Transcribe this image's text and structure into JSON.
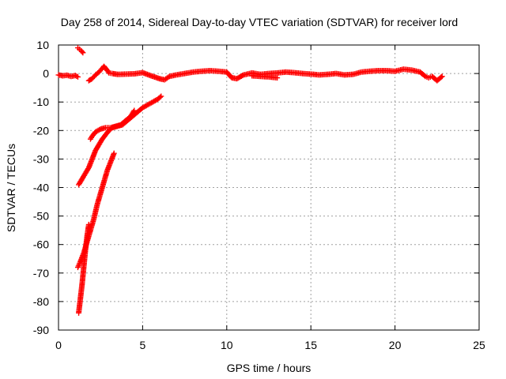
{
  "chart_data": {
    "type": "scatter",
    "title": "Day 258 of 2014, Sidereal Day-to-day VTEC variation (SDTVAR) for receiver lord",
    "xlabel": "GPS time / hours",
    "ylabel": "SDTVAR / TECUs",
    "xlim": [
      0,
      25
    ],
    "ylim": [
      -90,
      10
    ],
    "xticks": [
      "0",
      "5",
      "10",
      "15",
      "20",
      "25"
    ],
    "yticks": [
      "10",
      "0",
      "-10",
      "-20",
      "-30",
      "-40",
      "-50",
      "-60",
      "-70",
      "-80",
      "-90"
    ],
    "grid": true,
    "marker": "plus",
    "color": "#ff0000",
    "series": [
      {
        "x": [
          0,
          0.25,
          0.5,
          0.75,
          1.0,
          1.15
        ],
        "y": [
          -0.5,
          -0.8,
          -0.6,
          -1.0,
          -0.7,
          -1.2
        ]
      },
      {
        "x": [
          1.15,
          1.25,
          1.35,
          1.45
        ],
        "y": [
          9.0,
          8.5,
          8.0,
          7.3
        ]
      },
      {
        "x": [
          1.8,
          2.0,
          2.2,
          2.4,
          2.6,
          2.7,
          2.85,
          3.0,
          3.2,
          3.5,
          4.0,
          4.5,
          5.0,
          5.5,
          6.0,
          6.3,
          6.6,
          7.0,
          7.5,
          8.0,
          8.5,
          9.0,
          9.5,
          10.0,
          10.3,
          10.6,
          11.0,
          11.5,
          12.0,
          12.5,
          13.0,
          13.5,
          14.0,
          14.5,
          15.0,
          15.5,
          16.0,
          16.5,
          17.0,
          17.5,
          18.0,
          18.5,
          19.0,
          19.5,
          20.0,
          20.5,
          21.0,
          21.5,
          21.8,
          22.0,
          22.2,
          22.5,
          22.8
        ],
        "y": [
          -2.5,
          -1.8,
          -0.5,
          0.5,
          1.8,
          2.5,
          1.5,
          0.2,
          0.0,
          -0.3,
          -0.2,
          -0.1,
          0.3,
          -0.8,
          -1.8,
          -2.2,
          -1.0,
          -0.5,
          0.0,
          0.5,
          0.8,
          1.0,
          0.8,
          0.5,
          -1.5,
          -1.8,
          -0.5,
          0.2,
          -0.3,
          0.0,
          0.2,
          0.5,
          0.3,
          0.0,
          -0.2,
          -0.5,
          -0.3,
          0.0,
          -0.5,
          -0.3,
          0.5,
          0.8,
          1.0,
          1.0,
          0.8,
          1.5,
          1.2,
          0.5,
          -1.0,
          -1.5,
          -1.0,
          -2.5,
          -1.0
        ]
      },
      {
        "x": [
          11.5,
          12.0,
          12.5,
          13.0
        ],
        "y": [
          -0.8,
          -1.0,
          -1.2,
          -1.5
        ]
      },
      {
        "x": [
          1.2,
          1.4,
          1.6,
          1.8,
          2.0,
          2.2,
          2.4,
          2.6,
          2.8,
          3.0,
          3.2,
          3.5,
          3.8,
          4.1,
          4.4,
          4.7,
          5.0,
          5.3,
          5.6,
          5.9,
          6.1
        ],
        "y": [
          -39,
          -37,
          -35,
          -33,
          -30,
          -27,
          -25,
          -23,
          -21.5,
          -20,
          -19,
          -18.5,
          -18,
          -16.5,
          -15,
          -13.5,
          -12,
          -11,
          -10,
          -9,
          -8
        ]
      },
      {
        "x": [
          1.9,
          2.0,
          2.2,
          2.5,
          2.8,
          3.1,
          3.4,
          3.7,
          4.0,
          4.3,
          4.5
        ],
        "y": [
          -23,
          -22,
          -20.5,
          -19.5,
          -19,
          -19,
          -18.5,
          -18,
          -16.5,
          -15,
          -13
        ]
      },
      {
        "x": [
          1.15,
          1.3,
          1.5,
          1.7,
          1.9,
          2.1,
          2.3,
          2.5,
          2.7,
          2.9,
          3.1,
          3.3
        ],
        "y": [
          -68,
          -66,
          -63,
          -59,
          -55,
          -51,
          -46,
          -42,
          -38,
          -34,
          -31,
          -28
        ]
      },
      {
        "x": [
          1.2,
          1.3,
          1.4,
          1.5,
          1.6,
          1.7,
          1.8
        ],
        "y": [
          -84,
          -79,
          -74,
          -68,
          -62,
          -57,
          -53
        ]
      }
    ]
  }
}
